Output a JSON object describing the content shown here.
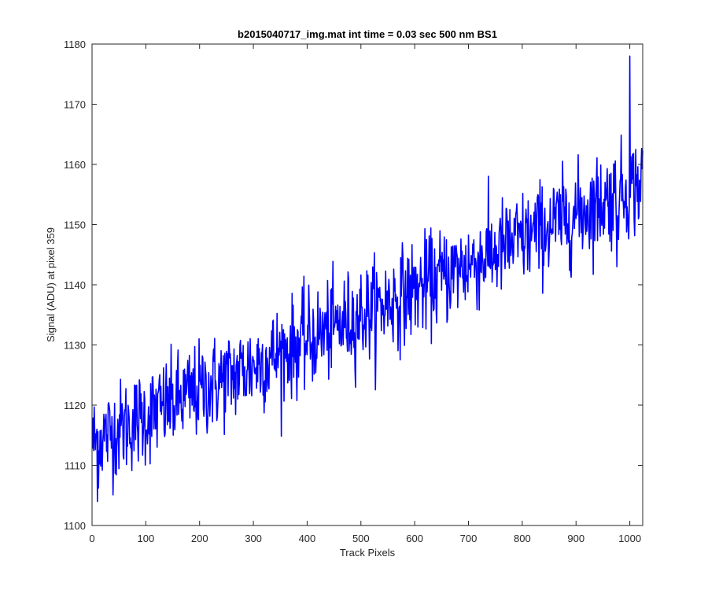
{
  "chart_data": {
    "type": "line",
    "title": "b2015040717_img.mat int time = 0.03 sec  500 nm BS1",
    "xlabel": "Track Pixels",
    "ylabel": "Signal (ADU) at pixel 359",
    "xlim": [
      0,
      1024
    ],
    "ylim": [
      1100,
      1180
    ],
    "xticks": [
      0,
      100,
      200,
      300,
      400,
      500,
      600,
      700,
      800,
      900,
      1000
    ],
    "yticks": [
      1100,
      1110,
      1120,
      1130,
      1140,
      1150,
      1160,
      1170,
      1180
    ],
    "grid": false,
    "box": true,
    "line_color": "#0000ff",
    "axis_color": "#262626",
    "series": [
      {
        "x_start": 1,
        "x_end": 1024,
        "n_points": 1024,
        "trend": {
          "start_value": 1114,
          "end_value": 1157,
          "shape": "linear"
        },
        "noise_std": 4,
        "values": [
          [
            1,
            1113
          ],
          [
            10,
            1104
          ],
          [
            50,
            1116
          ],
          [
            100,
            1118
          ],
          [
            150,
            1119
          ],
          [
            200,
            1121
          ],
          [
            250,
            1123
          ],
          [
            300,
            1126
          ],
          [
            350,
            1128
          ],
          [
            400,
            1131
          ],
          [
            450,
            1133
          ],
          [
            500,
            1136
          ],
          [
            550,
            1139
          ],
          [
            600,
            1141
          ],
          [
            650,
            1143
          ],
          [
            700,
            1146
          ],
          [
            750,
            1147
          ],
          [
            800,
            1149
          ],
          [
            850,
            1151
          ],
          [
            900,
            1154
          ],
          [
            950,
            1157
          ],
          [
            976,
            1143
          ],
          [
            1000,
            1178
          ],
          [
            1024,
            1158
          ]
        ]
      }
    ]
  }
}
